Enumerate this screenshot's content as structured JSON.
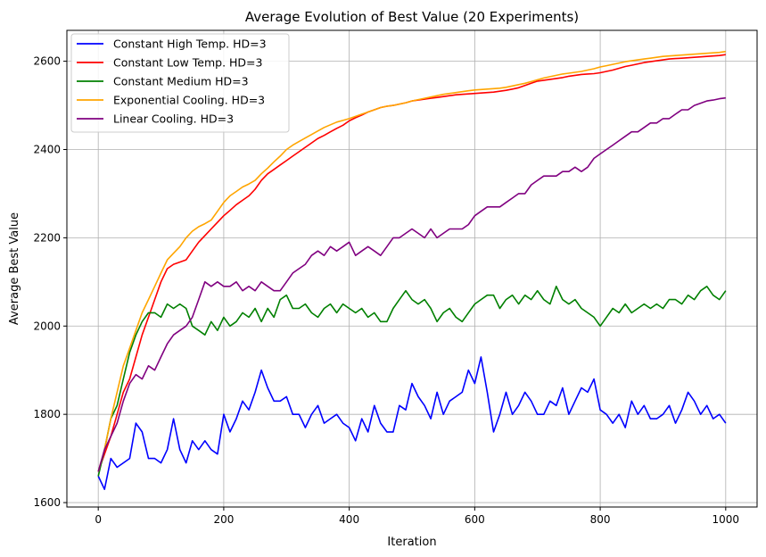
{
  "chart_data": {
    "type": "line",
    "title": "Average Evolution of Best Value (20 Experiments)",
    "xlabel": "Iteration",
    "ylabel": "Average Best Value",
    "xlim": [
      -50,
      1050
    ],
    "ylim": [
      1590,
      2670
    ],
    "xticks": [
      0,
      200,
      400,
      600,
      800,
      1000
    ],
    "yticks": [
      1600,
      1800,
      2000,
      2200,
      2400,
      2600
    ],
    "grid": true,
    "legend_position": "top-left",
    "series": [
      {
        "name": "Constant High Temp. HD=3",
        "color": "#0000ff",
        "x": [
          0,
          10,
          20,
          30,
          40,
          50,
          60,
          70,
          80,
          90,
          100,
          110,
          120,
          130,
          140,
          150,
          160,
          170,
          180,
          190,
          200,
          210,
          220,
          230,
          240,
          250,
          260,
          270,
          280,
          290,
          300,
          310,
          320,
          330,
          340,
          350,
          360,
          370,
          380,
          390,
          400,
          410,
          420,
          430,
          440,
          450,
          460,
          470,
          480,
          490,
          500,
          510,
          520,
          530,
          540,
          550,
          560,
          570,
          580,
          590,
          600,
          610,
          620,
          630,
          640,
          650,
          660,
          670,
          680,
          690,
          700,
          710,
          720,
          730,
          740,
          750,
          760,
          770,
          780,
          790,
          800,
          810,
          820,
          830,
          840,
          850,
          860,
          870,
          880,
          890,
          900,
          910,
          920,
          930,
          940,
          950,
          960,
          970,
          980,
          990,
          1000
        ],
        "y": [
          1660,
          1630,
          1700,
          1680,
          1690,
          1700,
          1780,
          1760,
          1700,
          1700,
          1690,
          1720,
          1790,
          1720,
          1690,
          1740,
          1720,
          1740,
          1720,
          1710,
          1800,
          1760,
          1790,
          1830,
          1810,
          1850,
          1900,
          1860,
          1830,
          1830,
          1840,
          1800,
          1800,
          1770,
          1800,
          1820,
          1780,
          1790,
          1800,
          1780,
          1770,
          1740,
          1790,
          1760,
          1820,
          1780,
          1760,
          1760,
          1820,
          1810,
          1870,
          1840,
          1820,
          1790,
          1850,
          1800,
          1830,
          1840,
          1850,
          1900,
          1870,
          1930,
          1850,
          1760,
          1800,
          1850,
          1800,
          1820,
          1850,
          1830,
          1800,
          1800,
          1830,
          1820,
          1860,
          1800,
          1830,
          1860,
          1850,
          1880,
          1810,
          1800,
          1780,
          1800,
          1770,
          1830,
          1800,
          1820,
          1790,
          1790,
          1800,
          1820,
          1780,
          1810,
          1850,
          1830,
          1800,
          1820,
          1790,
          1800,
          1780
        ]
      },
      {
        "name": "Constant Low Temp. HD=3",
        "color": "#ff0000",
        "x": [
          0,
          10,
          20,
          30,
          40,
          50,
          60,
          70,
          80,
          90,
          100,
          110,
          120,
          130,
          140,
          150,
          160,
          170,
          180,
          190,
          200,
          210,
          220,
          230,
          240,
          250,
          260,
          270,
          280,
          290,
          300,
          310,
          320,
          330,
          340,
          350,
          360,
          370,
          380,
          390,
          400,
          410,
          420,
          430,
          440,
          450,
          460,
          470,
          480,
          490,
          500,
          510,
          520,
          530,
          540,
          550,
          560,
          570,
          580,
          590,
          600,
          610,
          620,
          630,
          640,
          650,
          660,
          670,
          680,
          690,
          700,
          710,
          720,
          730,
          740,
          750,
          760,
          770,
          780,
          790,
          800,
          810,
          820,
          830,
          840,
          850,
          860,
          870,
          880,
          890,
          900,
          910,
          920,
          930,
          940,
          950,
          960,
          970,
          980,
          990,
          1000
        ],
        "y": [
          1670,
          1710,
          1750,
          1800,
          1850,
          1880,
          1930,
          1980,
          2020,
          2060,
          2100,
          2130,
          2140,
          2145,
          2150,
          2170,
          2190,
          2205,
          2220,
          2235,
          2250,
          2262,
          2275,
          2285,
          2295,
          2310,
          2330,
          2345,
          2355,
          2365,
          2375,
          2385,
          2395,
          2405,
          2415,
          2425,
          2432,
          2440,
          2448,
          2455,
          2465,
          2472,
          2478,
          2485,
          2490,
          2495,
          2498,
          2500,
          2503,
          2506,
          2510,
          2512,
          2514,
          2516,
          2518,
          2520,
          2522,
          2524,
          2525,
          2526,
          2527,
          2528,
          2529,
          2530,
          2532,
          2534,
          2537,
          2540,
          2545,
          2550,
          2555,
          2557,
          2559,
          2561,
          2563,
          2566,
          2568,
          2570,
          2571,
          2572,
          2574,
          2577,
          2580,
          2584,
          2588,
          2591,
          2594,
          2597,
          2599,
          2601,
          2603,
          2605,
          2606,
          2607,
          2608,
          2609,
          2610,
          2611,
          2612,
          2613,
          2615
        ]
      },
      {
        "name": "Constant Medium HD=3",
        "color": "#008000",
        "x": [
          0,
          10,
          20,
          30,
          40,
          50,
          60,
          70,
          80,
          90,
          100,
          110,
          120,
          130,
          140,
          150,
          160,
          170,
          180,
          190,
          200,
          210,
          220,
          230,
          240,
          250,
          260,
          270,
          280,
          290,
          300,
          310,
          320,
          330,
          340,
          350,
          360,
          370,
          380,
          390,
          400,
          410,
          420,
          430,
          440,
          450,
          460,
          470,
          480,
          490,
          500,
          510,
          520,
          530,
          540,
          550,
          560,
          570,
          580,
          590,
          600,
          610,
          620,
          630,
          640,
          650,
          660,
          670,
          680,
          690,
          700,
          710,
          720,
          730,
          740,
          750,
          760,
          770,
          780,
          790,
          800,
          810,
          820,
          830,
          840,
          850,
          860,
          870,
          880,
          890,
          900,
          910,
          920,
          930,
          940,
          950,
          960,
          970,
          980,
          990,
          1000
        ],
        "y": [
          1660,
          1720,
          1790,
          1820,
          1880,
          1940,
          1980,
          2010,
          2030,
          2030,
          2020,
          2050,
          2040,
          2050,
          2040,
          2000,
          1990,
          1980,
          2010,
          1990,
          2020,
          2000,
          2010,
          2030,
          2020,
          2040,
          2010,
          2040,
          2020,
          2060,
          2070,
          2040,
          2040,
          2050,
          2030,
          2020,
          2040,
          2050,
          2030,
          2050,
          2040,
          2030,
          2040,
          2020,
          2030,
          2010,
          2010,
          2040,
          2060,
          2080,
          2060,
          2050,
          2060,
          2040,
          2010,
          2030,
          2040,
          2020,
          2010,
          2030,
          2050,
          2060,
          2070,
          2070,
          2040,
          2060,
          2070,
          2050,
          2070,
          2060,
          2080,
          2060,
          2050,
          2090,
          2060,
          2050,
          2060,
          2040,
          2030,
          2020,
          2000,
          2020,
          2040,
          2030,
          2050,
          2030,
          2040,
          2050,
          2040,
          2050,
          2040,
          2060,
          2060,
          2050,
          2070,
          2060,
          2080,
          2090,
          2070,
          2060,
          2080
        ]
      },
      {
        "name": "Exponential Cooling. HD=3",
        "color": "#ffa500",
        "x": [
          0,
          10,
          20,
          30,
          40,
          50,
          60,
          70,
          80,
          90,
          100,
          110,
          120,
          130,
          140,
          150,
          160,
          170,
          180,
          190,
          200,
          210,
          220,
          230,
          240,
          250,
          260,
          270,
          280,
          290,
          300,
          310,
          320,
          330,
          340,
          350,
          360,
          370,
          380,
          390,
          400,
          410,
          420,
          430,
          440,
          450,
          460,
          470,
          480,
          490,
          500,
          510,
          520,
          530,
          540,
          550,
          560,
          570,
          580,
          590,
          600,
          610,
          620,
          630,
          640,
          650,
          660,
          670,
          680,
          690,
          700,
          710,
          720,
          730,
          740,
          750,
          760,
          770,
          780,
          790,
          800,
          810,
          820,
          830,
          840,
          850,
          860,
          870,
          880,
          890,
          900,
          910,
          920,
          930,
          940,
          950,
          960,
          970,
          980,
          990,
          1000
        ],
        "y": [
          1670,
          1720,
          1790,
          1850,
          1910,
          1950,
          1990,
          2030,
          2060,
          2090,
          2120,
          2150,
          2165,
          2180,
          2200,
          2215,
          2225,
          2232,
          2240,
          2260,
          2280,
          2295,
          2305,
          2315,
          2322,
          2330,
          2345,
          2358,
          2372,
          2385,
          2400,
          2410,
          2418,
          2426,
          2434,
          2442,
          2450,
          2456,
          2462,
          2466,
          2470,
          2475,
          2480,
          2485,
          2490,
          2495,
          2498,
          2500,
          2503,
          2506,
          2510,
          2513,
          2516,
          2519,
          2522,
          2525,
          2527,
          2529,
          2531,
          2533,
          2535,
          2536,
          2537,
          2538,
          2539,
          2541,
          2544,
          2547,
          2550,
          2554,
          2558,
          2562,
          2565,
          2568,
          2571,
          2573,
          2575,
          2577,
          2580,
          2583,
          2587,
          2590,
          2593,
          2596,
          2599,
          2601,
          2603,
          2605,
          2607,
          2609,
          2611,
          2612,
          2613,
          2614,
          2615,
          2616,
          2617,
          2618,
          2619,
          2620,
          2622
        ]
      },
      {
        "name": "Linear Cooling. HD=3",
        "color": "#800080",
        "x": [
          0,
          10,
          20,
          30,
          40,
          50,
          60,
          70,
          80,
          90,
          100,
          110,
          120,
          130,
          140,
          150,
          160,
          170,
          180,
          190,
          200,
          210,
          220,
          230,
          240,
          250,
          260,
          270,
          280,
          290,
          300,
          310,
          320,
          330,
          340,
          350,
          360,
          370,
          380,
          390,
          400,
          410,
          420,
          430,
          440,
          450,
          460,
          470,
          480,
          490,
          500,
          510,
          520,
          530,
          540,
          550,
          560,
          570,
          580,
          590,
          600,
          610,
          620,
          630,
          640,
          650,
          660,
          670,
          680,
          690,
          700,
          710,
          720,
          730,
          740,
          750,
          760,
          770,
          780,
          790,
          800,
          810,
          820,
          830,
          840,
          850,
          860,
          870,
          880,
          890,
          900,
          910,
          920,
          930,
          940,
          950,
          960,
          970,
          980,
          990,
          1000
        ],
        "y": [
          1670,
          1720,
          1750,
          1780,
          1830,
          1870,
          1890,
          1880,
          1910,
          1900,
          1930,
          1960,
          1980,
          1990,
          2000,
          2020,
          2060,
          2100,
          2090,
          2100,
          2090,
          2090,
          2100,
          2080,
          2090,
          2080,
          2100,
          2090,
          2080,
          2080,
          2100,
          2120,
          2130,
          2140,
          2160,
          2170,
          2160,
          2180,
          2170,
          2180,
          2190,
          2160,
          2170,
          2180,
          2170,
          2160,
          2180,
          2200,
          2200,
          2210,
          2220,
          2210,
          2200,
          2220,
          2200,
          2210,
          2220,
          2220,
          2220,
          2230,
          2250,
          2260,
          2270,
          2270,
          2270,
          2280,
          2290,
          2300,
          2300,
          2320,
          2330,
          2340,
          2340,
          2340,
          2350,
          2350,
          2360,
          2350,
          2360,
          2380,
          2390,
          2400,
          2410,
          2420,
          2430,
          2440,
          2440,
          2450,
          2460,
          2460,
          2470,
          2470,
          2480,
          2490,
          2490,
          2500,
          2505,
          2510,
          2512,
          2515,
          2517
        ]
      }
    ]
  }
}
